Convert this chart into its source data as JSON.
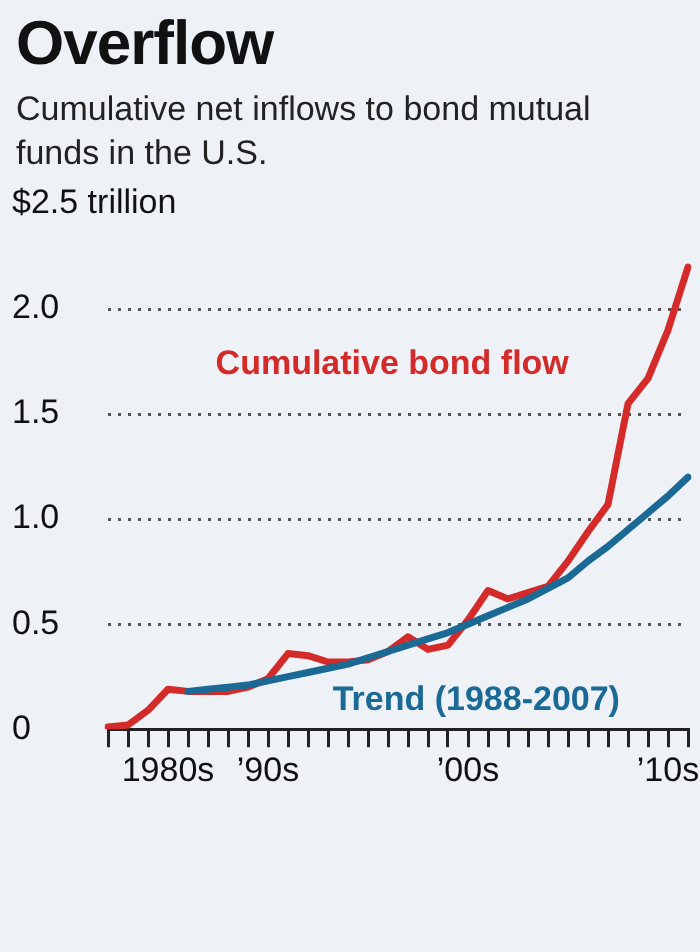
{
  "chart_data": {
    "type": "line",
    "title": "Overflow",
    "subtitle": "Cumulative net inflows to bond mutual funds in the U.S.",
    "categories": [
      null,
      null,
      null,
      "1980s",
      null,
      null,
      null,
      null,
      "’90s",
      null,
      null,
      null,
      null,
      null,
      null,
      null,
      null,
      null,
      "’00s",
      null,
      null,
      null,
      null,
      null,
      null,
      null,
      null,
      null,
      "’10s",
      null
    ],
    "ylim": [
      0,
      2.5
    ],
    "yticks": [
      0,
      0.5,
      {
        "value": 1,
        "label": "1.0"
      },
      1.5,
      {
        "value": 2,
        "label": "2.0"
      },
      {
        "value": 2.5,
        "label": "$2.5 trillion"
      }
    ],
    "grid": "y",
    "marker": "none",
    "line_style": "solid",
    "series": [
      {
        "name": "Trend (1988-2007)",
        "color": "#1b6a96",
        "values": [
          null,
          null,
          null,
          null,
          0.18,
          0.19,
          0.2,
          0.21,
          0.23,
          0.25,
          0.27,
          0.29,
          0.31,
          0.34,
          0.37,
          0.4,
          0.43,
          0.46,
          0.5,
          0.54,
          0.58,
          0.62,
          0.67,
          0.72,
          0.8,
          0.87,
          0.95,
          1.03,
          1.11,
          1.2
        ]
      },
      {
        "name": "Cumulative bond flow",
        "color": "#d42a2a",
        "values": [
          0.01,
          0.02,
          0.09,
          0.19,
          0.18,
          0.18,
          0.18,
          0.2,
          0.24,
          0.36,
          0.35,
          0.32,
          0.32,
          0.33,
          0.37,
          0.44,
          0.38,
          0.4,
          0.52,
          0.66,
          0.62,
          0.65,
          0.68,
          0.8,
          0.94,
          1.07,
          1.55,
          1.67,
          1.9,
          2.2
        ]
      }
    ]
  }
}
